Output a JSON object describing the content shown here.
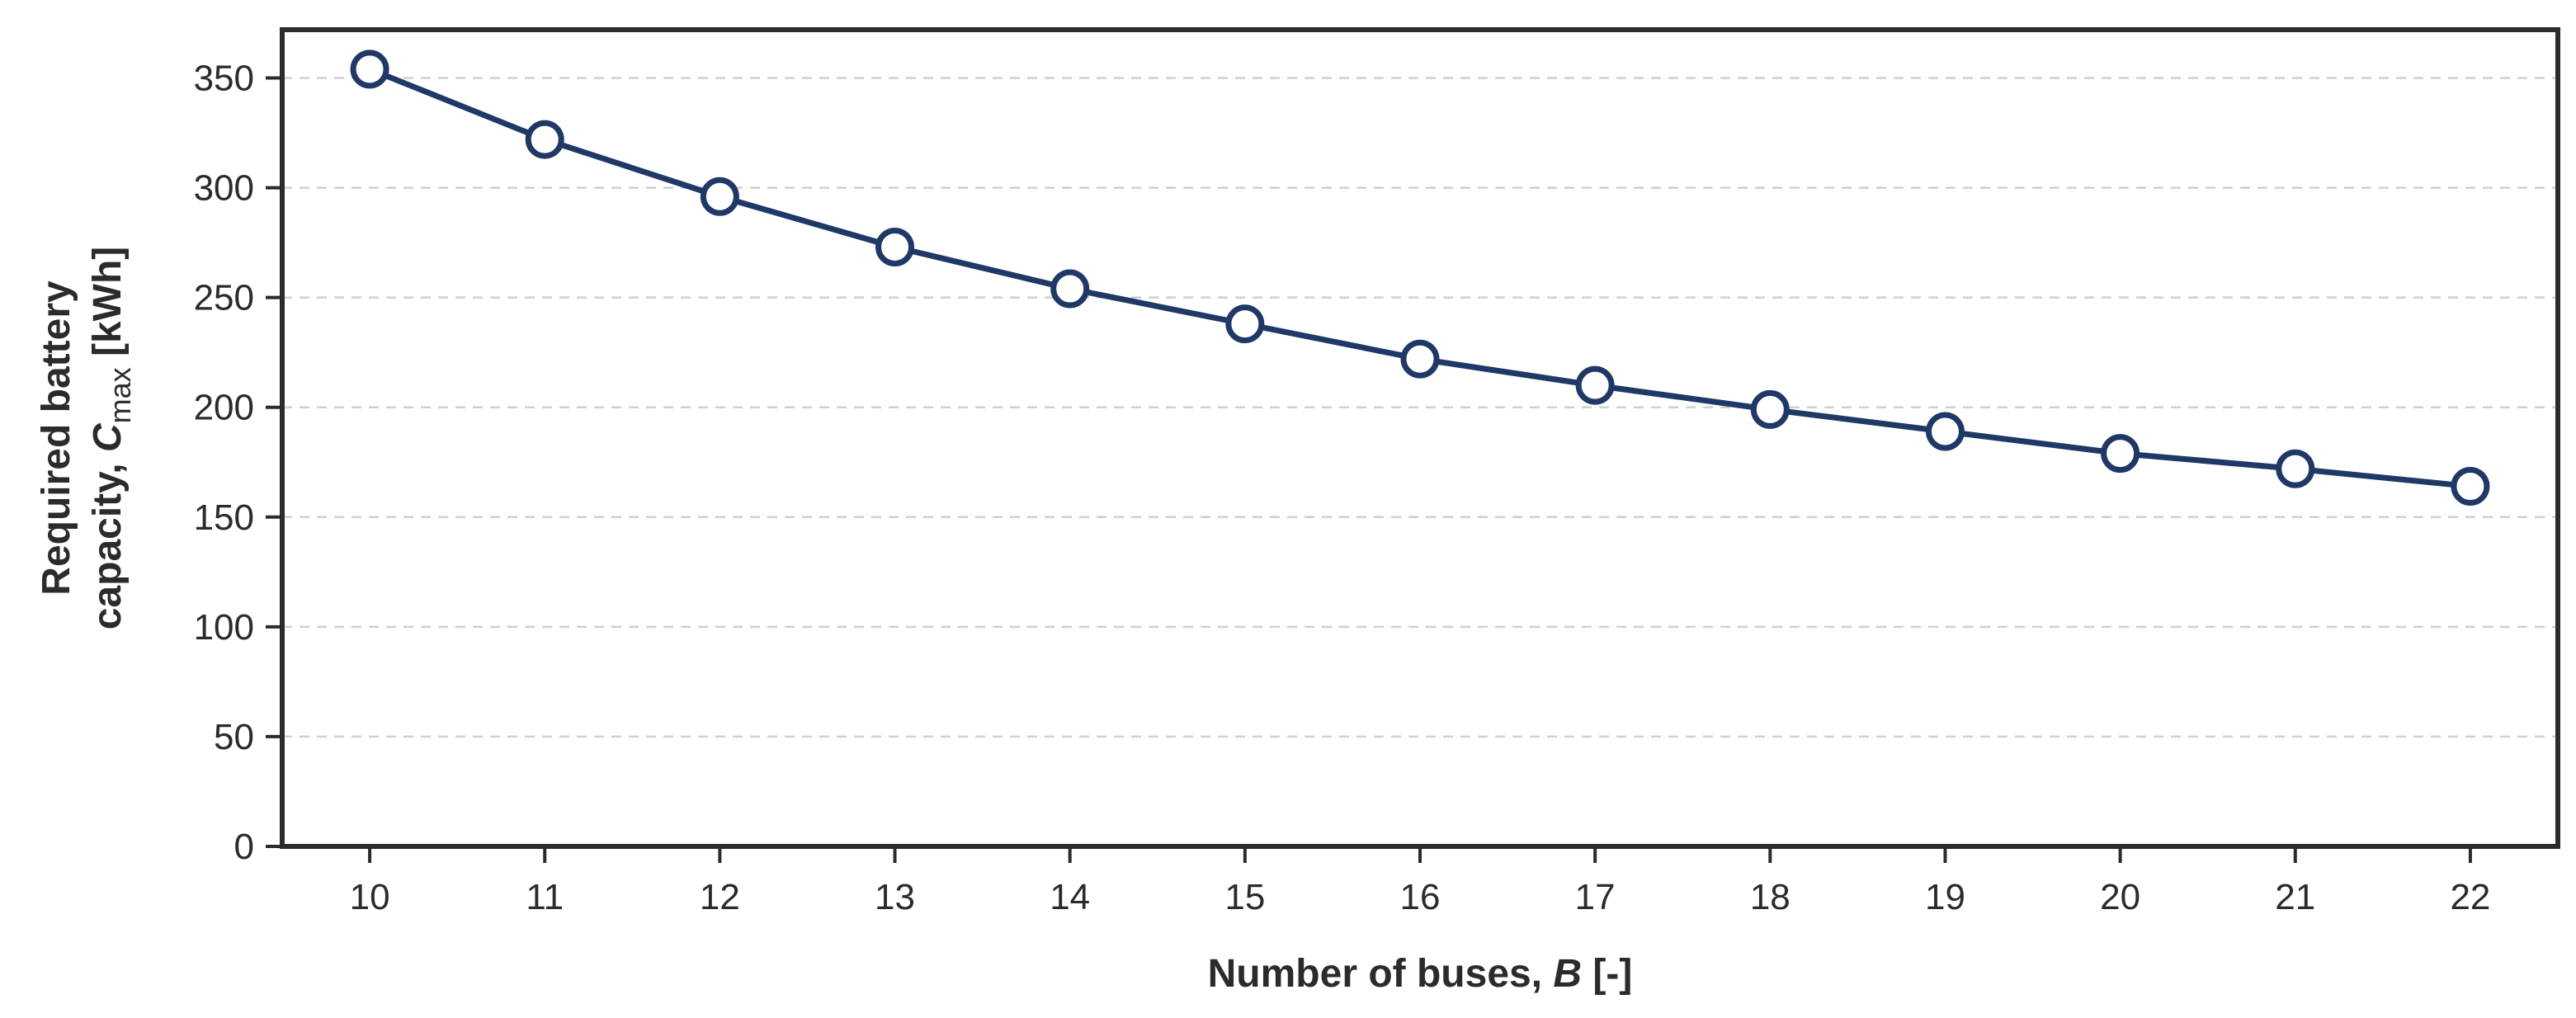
{
  "chart_data": {
    "type": "line",
    "x": [
      10,
      11,
      12,
      13,
      14,
      15,
      16,
      17,
      18,
      19,
      20,
      21,
      22
    ],
    "series": [
      {
        "values": [
          354,
          322,
          296,
          273,
          254,
          238,
          222,
          210,
          199,
          189,
          179,
          172,
          164
        ],
        "color": "#1f3866",
        "marker": "open-circle"
      }
    ],
    "xlabel": {
      "text": "Number of buses, ",
      "symbol": "B",
      "unit": " [-]"
    },
    "ylabel": {
      "line1": "Required battery",
      "line2_prefix": "capacity, ",
      "symbol": "C",
      "subscript": "max",
      "unit": " [kWh]"
    },
    "xticks": [
      "10",
      "11",
      "12",
      "13",
      "14",
      "15",
      "16",
      "17",
      "18",
      "19",
      "20",
      "21",
      "22"
    ],
    "yticks": [
      "0",
      "50",
      "100",
      "150",
      "200",
      "250",
      "300",
      "350"
    ],
    "xlim": [
      9.5,
      22.5
    ],
    "ylim": [
      0,
      372
    ],
    "grid": "horizontal-dashed",
    "legend": "none"
  }
}
